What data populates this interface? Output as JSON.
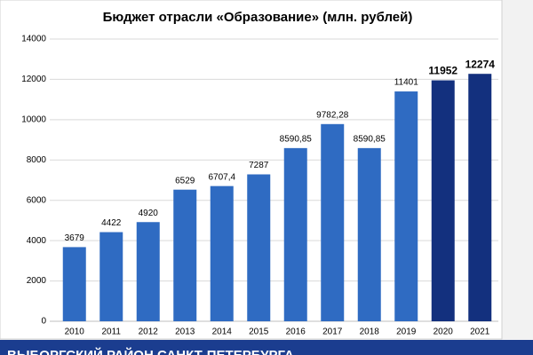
{
  "chart_data": {
    "type": "bar",
    "title": "Бюджет отрасли «Образование» (млн. рублей)",
    "categories": [
      "2010",
      "2011",
      "2012",
      "2013",
      "2014",
      "2015",
      "2016",
      "2017",
      "2018",
      "2019",
      "2020",
      "2021"
    ],
    "values": [
      3679,
      4422,
      4920,
      6529,
      6707.4,
      7287,
      8590.85,
      9782.28,
      8590.85,
      11401,
      11952,
      12274
    ],
    "value_labels": [
      "3679",
      "4422",
      "4920",
      "6529",
      "6707,4",
      "7287",
      "8590,85",
      "9782,28",
      "8590,85",
      "11401",
      "11952",
      "12274"
    ],
    "colors": [
      "#2f6bc2",
      "#2f6bc2",
      "#2f6bc2",
      "#2f6bc2",
      "#2f6bc2",
      "#2f6bc2",
      "#2f6bc2",
      "#2f6bc2",
      "#2f6bc2",
      "#2f6bc2",
      "#13307e",
      "#13307e"
    ],
    "bold_labels": [
      false,
      false,
      false,
      false,
      false,
      false,
      false,
      false,
      false,
      false,
      true,
      true
    ],
    "ylim": [
      0,
      14000
    ],
    "yticks": [
      0,
      2000,
      4000,
      6000,
      8000,
      10000,
      12000,
      14000
    ],
    "grid": true
  },
  "footer": "ВЫБОРГСКИЙ РАЙОН САНКТ-ПЕТЕРБУРГА"
}
